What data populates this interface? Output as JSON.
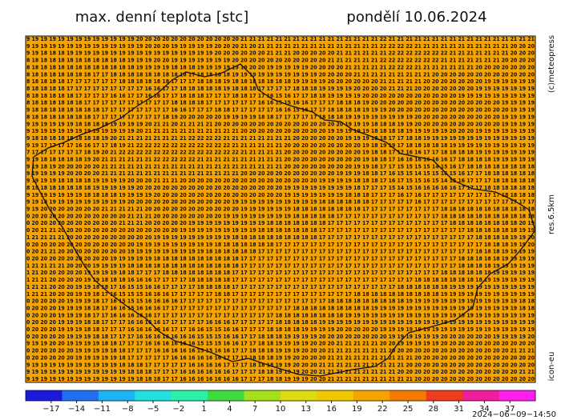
{
  "header": {
    "title": "max. denní teplota [stc]",
    "date": "pondělí 10.06.2024"
  },
  "side": {
    "copyright": "(c)meteopress",
    "resolution": "res.6.5km",
    "model": "icon-eu"
  },
  "timestamp": "2024−06−09−14:50",
  "map": {
    "background": "#f5a300",
    "rows": [
      "9 19 19 19 19 19 19 19 19 19 19 19 19 20 20 20 20 20 20 20 20 20 20 20 20 21 21 21 21 21 21 21 21 21 21 21 21 21 21 21 21 22 21 21 21 21 21 21 21 21 21 21 21 21 21 21 21 21 21",
      "9 19 19 19 19 19 19 19 19 19 19 19 19 19 20 20 20 19 19 19 19 19 20 20 20 21 20 21 21 21 21 21 21 21 21 21 21 21 21 21 21 22 22 22 22 21 21 21 21 21 21 21 21 21 21 21 20 20 20",
      "9 19 18 18 18 19 19 19 19 19 19 19 19 19 19 19 19 19 19 19 19 19 20 20 20 20 20 20 21 21 21 20 20 20 20 20 21 21 21 21 21 21 22 22 22 22 22 22 22 21 21 21 21 21 21 21 20 20 20",
      "8 18 18 18 18 18 18 18 18 18 18 18 19 19 19 20 20 19 19 19 19 19 19 19 20 20 20 20 20 20 20 20 20 20 20 21 21 21 21 21 21 22 22 22 22 22 22 22 21 21 21 21 21 21 21 20 20 20 20",
      "8 18 18 18 18 18 18 18 18 18 18 18 18 19 19 19 19 18 18 18 19 19 19 19 19 19 20 20 19 19 19 19 19 20 20 20 20 21 21 21 21 21 22 22 22 21 21 21 21 21 21 21 20 20 20 20 20 20 20",
      "8 18 18 18 18 18 18 18 17 17 18 18 18 18 18 18 18 18 18 17 18 18 18 18 19 19 19 19 19 19 19 19 19 19 20 20 20 20 21 21 21 21 21 21 21 21 21 20 20 20 20 20 20 20 20 20 20 20 20",
      "8 18 18 18 18 17 17 17 17 17 17 18 18 18 18 18 18 17 17 17 18 18 18 19 18 18 18 18 18 18 18 19 19 19 19 20 20 20 20 20 20 21 21 21 21 21 20 20 20 20 20 20 20 19 19 19 19 19 19",
      "8 18 18 18 18 17 17 17 17 17 17 17 17 17 16 16 17 17 18 18 18 18 18 19 18 18 18 17 17 17 17 18 18 18 19 19 19 19 20 20 20 20 21 21 21 20 20 20 20 20 20 20 19 19 19 19 19 19 19",
      "8 18 18 18 18 18 17 17 17 17 16 16 17 17 16 16 17 17 18 18 18 17 17 17 18 18 17 17 16 15 16 17 17 18 18 19 19 19 19 20 20 20 20 20 20 20 20 20 20 20 19 19 19 19 19 19 19 19 19",
      "8 18 18 18 18 18 18 17 17 17 17 17 17 17 17 17 17 18 18 18 18 17 17 17 17 17 17 16 16 15 15 16 16 17 17 17 18 18 18 19 20 20 20 20 20 20 20 20 20 20 20 20 20 20 20 19 19 19 19",
      "9 18 18 18 18 18 18 18 18 17 17 17 17 17 17 17 17 16 16 17 17 17 18 18 17 17 17 17 17 16 16 15 16 17 17 18 18 18 18 19 19 19 20 20 20 20 20 20 20 20 20 20 20 20 20 20 19 19 19",
      "8 18 18 18 18 18 18 18 17 17 17 17 17 17 17 17 18 19 20 20 20 20 20 19 19 19 19 18 18 17 17 17 17 17 18 18 18 19 19 19 19 19 19 19 19 20 20 20 20 20 20 20 20 20 20 19 19 19 19",
      "9 19 19 19 19 19 18 18 18 18 19 19 19 19 20 21 21 20 21 21 21 21 20 20 20 20 20 20 20 20 20 20 20 20 20 20 20 19 19 19 18 18 18 19 19 20 20 20 20 20 20 20 20 20 20 19 19 19 19",
      "9 19 19 19 19 19 19 19 19 19 19 19 19 20 21 21 21 21 21 21 21 21 21 21 21 20 20 20 20 20 20 20 20 20 20 19 19 19 19 19 18 18 18 18 19 19 19 19 19 20 20 20 19 19 19 19 19 19 19",
      "9 18 18 18 18 18 18 18 18 19 20 21 21 21 21 21 21 21 21 22 22 22 22 21 21 21 21 21 21 21 21 20 20 20 20 20 20 19 19 19 18 18 17 17 18 18 19 19 19 19 19 19 19 19 19 19 19 19 19",
      "9 19 17 17 17 17 16 16 17 17 18 19 21 22 22 22 22 22 22 22 22 22 22 22 21 21 21 21 21 21 20 20 20 20 20 20 20 20 20 19 18 19 19 17 18 18 18 18 18 19 19 19 19 19 19 19 19 19 19",
      "7 17 17 17 17 17 17 18 19 20 21 22 22 22 22 22 22 22 22 22 22 22 22 22 22 21 21 21 21 21 20 20 20 20 20 20 20 20 20 19 18 18 17 17 16 16 17 17 18 18 18 18 19 19 19 19 19 19 19",
      "9 19 18 18 18 18 18 19 20 21 21 21 21 21 21 22 22 22 22 22 21 21 21 21 21 21 21 21 21 21 20 20 20 20 20 20 20 20 20 19 18 18 17 16 16 16 16 16 16 17 18 18 18 18 19 19 19 19 19",
      "9 19 18 19 20 20 20 20 20 21 21 21 21 21 21 21 21 21 21 21 21 21 21 21 21 21 21 21 21 21 20 20 20 20 20 20 20 20 19 19 18 17 17 15 15 15 15 14 15 16 17 18 18 18 18 18 18 18 18",
      "9 19 19 19 19 20 20 20 20 21 21 21 21 21 21 21 21 21 21 21 21 21 21 21 21 20 20 20 20 20 20 20 20 20 20 20 19 19 19 18 18 17 16 15 15 14 15 15 16 15 16 17 17 18 18 18 18 18 18",
      "9 19 19 19 18 18 18 18 19 19 19 19 20 20 20 21 21 21 20 20 20 20 20 20 20 20 20 20 20 20 20 20 20 20 19 19 19 19 18 18 18 17 16 17 15 15 16 15 14 15 16 17 17 17 18 18 18 18 18",
      "8 18 18 18 18 18 18 18 19 19 19 19 19 20 20 20 20 20 20 20 20 20 20 20 20 20 20 20 20 20 19 19 19 19 19 19 19 19 18 17 17 17 15 14 15 16 16 16 16 16 17 17 17 18 18 18 18 18 18",
      "9 19 19 19 19 19 19 18 18 18 18 19 19 19 19 20 20 20 20 20 20 20 20 20 20 20 20 20 20 20 19 19 19 19 19 19 19 18 18 18 17 17 17 16 17 16 17 17 17 17 17 17 17 17 17 18 18 18 18",
      "9 19 18 19 19 19 19 19 19 19 19 19 20 20 20 20 20 20 20 20 20 20 20 20 19 19 19 19 19 19 19 19 19 19 18 18 18 18 18 18 17 17 17 17 17 16 17 17 17 17 17 17 17 17 17 17 17 17 17",
      "9 19 20 20 20 20 20 20 20 21 21 21 21 21 20 20 20 20 20 20 20 20 20 20 20 19 19 19 19 19 19 18 18 18 18 18 18 18 18 17 17 17 17 17 17 17 17 17 18 18 18 18 18 18 18 18 18 18 18",
      "0 20 20 20 20 20 20 20 20 20 20 20 21 21 21 20 20 20 20 20 20 20 20 19 19 19 19 19 19 19 19 18 18 18 18 18 17 17 17 17 17 17 17 17 17 17 17 17 18 18 18 18 18 18 18 18 18 18 18",
      "0 20 20 20 20 20 20 20 20 20 20 21 21 21 20 20 20 20 20 19 19 19 19 19 19 19 19 19 18 18 18 18 18 18 18 17 17 17 17 17 17 17 17 17 17 17 17 17 17 18 18 18 18 18 18 18 18 20 19",
      "0 20 21 21 20 20 20 20 20 20 20 20 20 20 20 20 20 20 19 19 19 19 19 19 19 19 19 18 18 18 18 18 18 18 17 17 17 17 17 17 17 17 17 17 17 17 17 17 17 17 17 18 18 18 18 18 18 19 19",
      "1 21 21 21 21 20 20 20 20 20 20 20 20 20 20 19 19 19 19 19 19 19 19 19 18 18 18 18 18 18 18 18 18 18 17 17 17 17 17 17 17 17 17 17 17 17 17 17 17 17 17 17 18 18 18 18 19 19 20",
      "0 20 20 20 20 20 20 20 20 20 20 20 20 19 19 19 19 19 19 19 19 19 18 18 18 18 18 18 18 17 17 17 17 17 17 17 17 17 17 17 17 17 17 17 17 17 17 17 17 17 17 17 17 18 18 18 19 19 20",
      "0 20 21 21 20 20 20 20 20 20 20 20 19 19 19 19 19 19 19 19 19 18 18 18 18 18 18 17 17 17 17 17 17 17 17 17 17 17 17 17 17 17 17 17 17 17 17 17 17 17 17 17 18 18 18 19 19 19 19",
      "0 20 20 20 20 20 20 20 20 20 19 19 19 19 19 18 18 18 18 18 18 18 18 18 18 17 17 17 17 17 17 17 17 17 17 17 17 17 17 17 17 17 17 17 17 17 17 17 17 17 18 18 18 18 18 19 19 19 19",
      "1 21 21 21 21 20 20 20 19 19 19 19 18 18 18 18 18 18 18 18 18 18 18 18 18 17 17 17 17 17 17 17 17 17 17 17 17 17 17 17 17 17 17 17 17 17 17 17 17 17 18 18 18 18 19 19 19 19 19",
      "1 21 20 20 20 20 20 19 19 19 19 18 18 17 17 17 18 18 18 18 18 18 18 18 17 17 17 17 17 17 17 17 17 17 17 17 17 17 17 17 17 17 17 17 17 17 17 17 18 18 18 18 18 18 19 19 19 19 19",
      "1 21 21 20 20 20 20 19 19 18 18 18 16 16 16 17 17 17 17 18 18 18 18 18 17 17 17 17 17 17 17 17 17 17 17 17 17 17 17 17 17 17 17 17 17 18 18 18 18 18 18 18 18 19 19 19 19 19 19",
      "1 21 21 20 20 20 19 19 18 18 17 16 15 15 16 16 17 17 17 17 18 18 18 18 17 17 17 17 17 17 17 17 17 17 17 17 17 17 17 17 17 17 17 18 18 18 18 18 18 19 19 19 19 19 19 19 19 19 19",
      "1 21 21 20 20 20 19 19 18 17 16 15 15 15 16 16 16 17 17 17 17 17 18 18 17 17 17 17 17 17 17 17 17 17 17 17 17 17 18 18 18 18 18 18 18 18 18 18 19 19 19 19 19 19 19 19 19 19 19",
      "0 20 20 20 20 19 19 19 18 17 16 15 15 15 16 16 16 16 17 17 17 17 17 17 17 17 17 17 17 17 17 17 17 17 17 18 18 18 18 18 18 18 18 18 19 19 19 19 19 19 19 19 19 19 19 19 19 18 18",
      "0 20 20 20 19 19 19 18 18 17 16 16 15 16 16 16 17 17 17 17 17 17 17 17 17 17 17 17 17 17 17 18 18 18 18 18 18 18 18 18 19 19 19 19 19 19 19 19 19 19 19 19 19 19 19 19 19 18 18",
      "0 20 20 20 19 19 19 18 17 17 16 16 16 16 16 17 17 17 17 17 17 17 17 17 17 17 17 17 17 18 18 18 18 18 18 18 18 19 19 19 19 19 19 19 19 19 19 19 19 19 19 19 19 19 19 19 19 19 19",
      "0 20 20 20 19 19 19 18 18 17 17 17 16 16 16 16 17 17 17 17 17 16 16 16 17 17 17 17 17 18 18 18 18 18 19 19 19 19 19 19 19 19 19 19 19 19 19 19 19 19 19 19 19 19 19 19 19 19 19",
      "0 20 20 20 19 19 19 18 18 17 17 17 16 16 16 16 16 17 17 16 16 15 15 16 16 17 17 17 18 18 18 18 19 19 19 19 20 20 20 20 20 19 19 19 19 19 19 19 19 19 19 19 19 19 19 19 19 19 19",
      "0 20 20 20 20 19 19 19 18 18 17 17 17 16 16 16 16 16 16 16 15 15 15 16 16 17 17 18 18 18 19 19 19 19 20 20 20 20 20 20 20 20 19 19 19 19 19 19 20 20 20 20 20 20 19 19 19 19 20",
      "9 19 19 20 20 19 19 19 19 18 18 17 17 17 16 16 16 16 16 16 15 15 15 16 16 17 17 18 18 19 19 19 19 20 20 20 21 21 21 21 21 20 20 19 19 19 19 19 20 20 20 20 20 20 20 20 20 20 20",
      "0 20 20 20 20 20 19 19 19 19 18 18 17 17 17 16 16 16 16 16 15 15 16 16 17 17 18 18 18 19 19 19 20 20 20 21 21 21 21 21 21 21 20 20 20 20 20 20 20 20 20 20 20 20 20 20 21 21 21",
      "0 20 20 20 20 20 19 19 19 19 19 18 17 17 17 17 17 16 16 16 16 16 16 17 17 17 18 18 18 19 19 20 20 20 20 21 21 21 21 21 21 21 21 21 21 20 20 20 20 20 20 20 20 20 20 20 20 20 20",
      "9 19 19 19 19 19 19 19 19 19 19 18 18 18 17 17 17 17 17 16 16 16 16 17 17 17 18 18 18 19 19 20 20 20 21 21 21 21 21 21 21 21 21 21 20 20 20 20 20 20 20 20 20 20 20 20 20 20 20",
      "9 19 19 19 19 19 19 19 19 19 19 19 18 18 18 17 17 17 16 16 16 16 16 16 17 17 17 18 18 19 19 19 20 20 21 21 21 21 21 21 21 21 21 20 20 20 20 20 20 20 20 20 20 20 20 20 20 21 21",
      "9 19 19 19 19 19 19 19 19 19 19 19 19 18 18 18 17 17 16 16 16 16 16 16 16 17 17 17 18 18 19 19 19 20 20 21 21 21 21 21 21 21 21 21 21 20 20 20 20 20 20 20 20 20 20 20 20 20 20"
    ]
  },
  "colorbar": {
    "lim": [
      -20,
      40
    ],
    "colors": [
      "#1a1adc",
      "#1f6ff0",
      "#1cb4f5",
      "#22e0e0",
      "#2cf0a8",
      "#3cdc3c",
      "#a6e01a",
      "#dcdc10",
      "#f0c800",
      "#f5a300",
      "#f57a00",
      "#f03c1e",
      "#f01e9c",
      "#ff1ef0"
    ],
    "ticks": [
      {
        "value": -17,
        "label": "−17"
      },
      {
        "value": -14,
        "label": "−14"
      },
      {
        "value": -11,
        "label": "−11"
      },
      {
        "value": -8,
        "label": "−8"
      },
      {
        "value": -5,
        "label": "−5"
      },
      {
        "value": -2,
        "label": "−2"
      },
      1,
      4,
      7,
      10,
      13,
      16,
      19,
      22,
      25,
      28,
      31,
      34,
      37
    ]
  }
}
